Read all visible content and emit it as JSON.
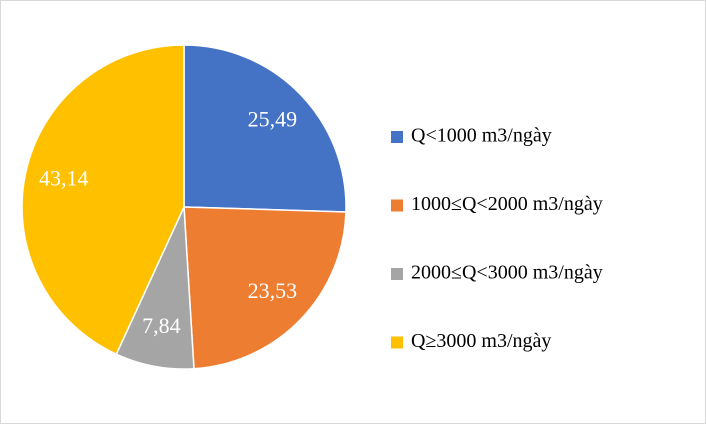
{
  "chart_data": {
    "type": "pie",
    "categories": [
      "Q<1000 m3/ngày",
      "1000≤Q<2000 m3/ngày",
      "2000≤Q<3000 m3/ngày",
      "Q≥3000 m3/ngày"
    ],
    "values": [
      25.49,
      23.53,
      7.84,
      43.14
    ],
    "value_labels": [
      "25,49",
      "23,53",
      "7,84",
      "43,14"
    ],
    "colors": [
      "#4472c4",
      "#ed7d31",
      "#a5a5a5",
      "#ffc000"
    ],
    "legend": "right"
  }
}
